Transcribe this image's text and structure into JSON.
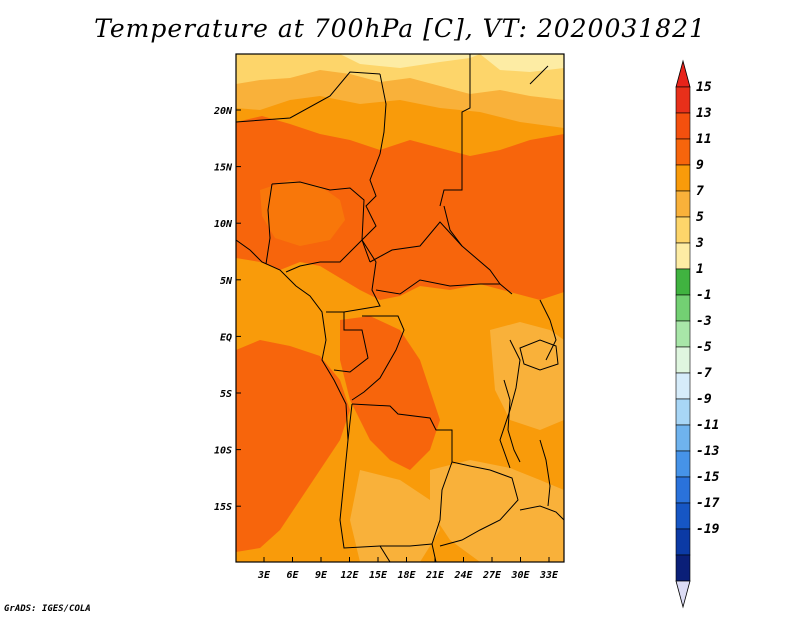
{
  "title": "Temperature at 700hPa [C], VT: 2020031821",
  "credit": "GrADS: IGES/COLA",
  "map": {
    "lon_labels": [
      "3E",
      "6E",
      "9E",
      "12E",
      "15E",
      "18E",
      "21E",
      "24E",
      "27E",
      "30E",
      "33E"
    ],
    "lat_labels": [
      "20N",
      "15N",
      "10N",
      "5N",
      "EQ",
      "5S",
      "10S",
      "15S"
    ],
    "colors": {
      "c7_9": "#f9b13a",
      "c9_11": "#f99b0a",
      "c11_13": "#f7650c",
      "c5_7": "#fdd56a",
      "c3_5": "#fdeca4"
    }
  },
  "colorbar": {
    "labels": [
      "15",
      "13",
      "11",
      "9",
      "7",
      "5",
      "3",
      "1",
      "-1",
      "-3",
      "-5",
      "-7",
      "-9",
      "-11",
      "-13",
      "-15",
      "-17",
      "-19"
    ],
    "colors": [
      "#e8301a",
      "#f4500e",
      "#f7650c",
      "#f99b0a",
      "#f9b13a",
      "#fdd56a",
      "#fdeca4",
      "#40b340",
      "#73d073",
      "#a8e6a8",
      "#dff6df",
      "#d6ecfa",
      "#a8d6f6",
      "#6fb3ee",
      "#4693e8",
      "#2a72db",
      "#1656c4",
      "#0b3aa5",
      "#0a1f78"
    ],
    "top_arrow": "#e8231a",
    "bottom_arrow": "#dcdcf5"
  }
}
